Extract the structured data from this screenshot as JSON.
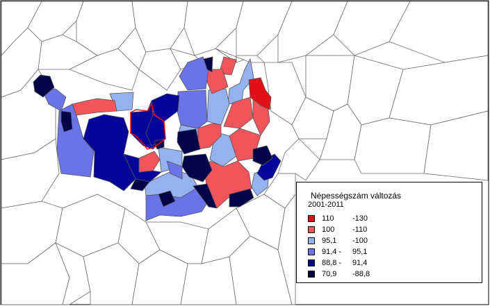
{
  "legend": {
    "title": "Népességszám változás",
    "subtitle": "2001-2011",
    "classes": [
      {
        "low": "110",
        "high": "-130",
        "color": "#e3101a"
      },
      {
        "low": "100",
        "high": "-110",
        "color": "#f2545c"
      },
      {
        "low": "95,1",
        "high": "-100",
        "color": "#94b1f0"
      },
      {
        "low": "91,4 -",
        "high": "95,1",
        "color": "#6a73e8"
      },
      {
        "low": "88,8 -",
        "high": "91,4",
        "color": "#06059a"
      },
      {
        "low": "70,9",
        "high": "-88,8",
        "color": "#030347"
      }
    ]
  },
  "colors": {
    "outline": "#555555",
    "highlight_border": "#e3101a",
    "background": "#ffffff"
  }
}
